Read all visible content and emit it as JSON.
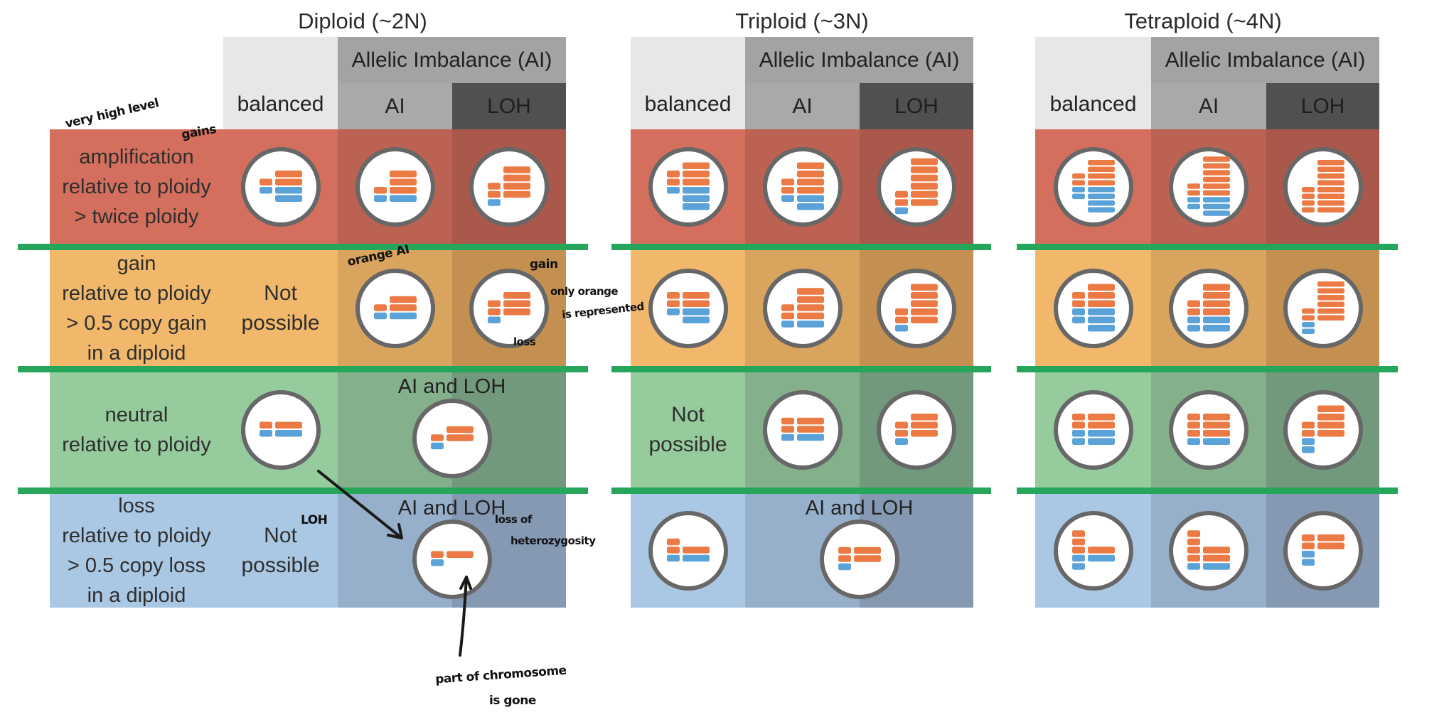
{
  "colors": {
    "orange": "#ec7a45",
    "blue": "#5aa2d8",
    "separator": "#26a65b",
    "header_balanced": "#e7e7e7",
    "header_ai_group": "#a3a3a3",
    "header_ai": "#a9a9a9",
    "header_loh": "#505050",
    "rows": {
      "amplification": [
        "#d46f5d",
        "#bc6252",
        "#aa584b"
      ],
      "gain": [
        "#f1b86c",
        "#d9a45e",
        "#c49052"
      ],
      "neutral": [
        "#96cb9d",
        "#84b08b",
        "#73997c"
      ],
      "loss": [
        "#aac7e4",
        "#96b0cb",
        "#8599b3"
      ]
    }
  },
  "row_labels": [
    {
      "key": "amplification",
      "lines": [
        "amplification",
        "relative to ploidy",
        "> twice ploidy"
      ]
    },
    {
      "key": "gain",
      "lines": [
        "gain",
        "relative to ploidy",
        "> 0.5 copy gain",
        "in a diploid"
      ]
    },
    {
      "key": "neutral",
      "lines": [
        "neutral",
        "relative to ploidy"
      ]
    },
    {
      "key": "loss",
      "lines": [
        "loss",
        "relative to ploidy",
        "> 0.5 copy loss",
        "in a diploid"
      ]
    }
  ],
  "ploidies": [
    {
      "title": "Diploid (~2N)",
      "ai_group": "Allelic Imbalance (AI)",
      "columns": [
        "balanced",
        "AI",
        "LOH"
      ],
      "rows": [
        [
          {
            "type": "circle",
            "chromosomes": [
              "O-q",
              "O-pq",
              "B-pq",
              "B-q"
            ]
          },
          {
            "type": "circle",
            "chromosomes": [
              "O-q",
              "O-q",
              "O-pq",
              "B-pq"
            ]
          },
          {
            "type": "circle",
            "chromosomes": [
              "O-q",
              "O-q",
              "O-pq",
              "O-pq",
              "B-p"
            ]
          }
        ],
        [
          {
            "type": "text",
            "lines": [
              "Not",
              "possible"
            ]
          },
          {
            "type": "circle",
            "chromosomes": [
              "O-q",
              "O-pq",
              "B-pq"
            ]
          },
          {
            "type": "circle",
            "chromosomes": [
              "O-q",
              "O-pq",
              "O-pq",
              "B-p"
            ]
          }
        ],
        [
          {
            "type": "circle",
            "chromosomes": [
              "O-pq",
              "B-pq"
            ]
          },
          {
            "type": "merged",
            "label": "AI and LOH",
            "chromosomes": [
              "O-q",
              "O-pq",
              "B-p"
            ]
          }
        ],
        [
          {
            "type": "text",
            "lines": [
              "Not",
              "possible"
            ]
          },
          {
            "type": "merged",
            "label": "AI and LOH",
            "chromosomes": [
              "O-pq",
              "B-p"
            ]
          }
        ]
      ]
    },
    {
      "title": "Triploid (~3N)",
      "ai_group": "Allelic Imbalance (AI)",
      "columns": [
        "balanced",
        "AI",
        "LOH"
      ],
      "rows": [
        [
          {
            "type": "circle",
            "chromosomes": [
              "O-q",
              "O-pq",
              "O-pq",
              "B-pq",
              "B-q",
              "B-q"
            ]
          },
          {
            "type": "circle",
            "chromosomes": [
              "O-q",
              "O-q",
              "O-pq",
              "O-pq",
              "B-pq",
              "B-q"
            ]
          },
          {
            "type": "circle",
            "chromosomes": [
              "O-q",
              "O-q",
              "O-q",
              "O-q",
              "O-pq",
              "O-pq",
              "B-p"
            ]
          }
        ],
        [
          {
            "type": "circle",
            "chromosomes": [
              "O-pq",
              "O-pq",
              "B-pq",
              "B-q"
            ]
          },
          {
            "type": "circle",
            "chromosomes": [
              "O-q",
              "O-q",
              "O-pq",
              "O-pq",
              "B-pq"
            ]
          },
          {
            "type": "circle",
            "chromosomes": [
              "O-q",
              "O-q",
              "O-q",
              "O-pq",
              "O-pq",
              "B-p"
            ]
          }
        ],
        [
          {
            "type": "text",
            "lines": [
              "Not",
              "possible"
            ]
          },
          {
            "type": "circle",
            "chromosomes": [
              "O-pq",
              "O-pq",
              "B-pq"
            ]
          },
          {
            "type": "circle",
            "chromosomes": [
              "O-q",
              "O-pq",
              "O-pq",
              "B-p"
            ]
          }
        ],
        [
          {
            "type": "circle",
            "chromosomes": [
              "O-p",
              "O-pq",
              "B-pq"
            ]
          },
          {
            "type": "merged",
            "label": "AI and LOH",
            "chromosomes": [
              "O-pq",
              "O-pq",
              "B-p"
            ]
          }
        ]
      ]
    },
    {
      "title": "Tetraploid (~4N)",
      "ai_group": "Allelic Imbalance (AI)",
      "columns": [
        "balanced",
        "AI",
        "LOH"
      ],
      "rows": [
        [
          {
            "type": "circle",
            "chromosomes": [
              "O-q",
              "O-q",
              "O-pq",
              "O-pq",
              "B-pq",
              "B-pq",
              "B-q",
              "B-q"
            ]
          },
          {
            "type": "circle",
            "chromosomes": [
              "O-q",
              "O-q",
              "O-q",
              "O-q",
              "O-pq",
              "O-pq",
              "B-pq",
              "B-pq",
              "B-q"
            ]
          },
          {
            "type": "circle",
            "chromosomes": [
              "O-q",
              "O-q",
              "O-q",
              "O-q",
              "O-pq",
              "O-pq",
              "O-pq",
              "O-pq"
            ]
          }
        ],
        [
          {
            "type": "circle",
            "chromosomes": [
              "O-q",
              "O-pq",
              "O-pq",
              "B-pq",
              "B-pq",
              "B-q"
            ]
          },
          {
            "type": "circle",
            "chromosomes": [
              "O-q",
              "O-q",
              "O-pq",
              "O-pq",
              "B-pq",
              "B-pq"
            ]
          },
          {
            "type": "circle",
            "chromosomes": [
              "O-q",
              "O-q",
              "O-q",
              "O-q",
              "O-pq",
              "O-pq",
              "B-p",
              "B-p"
            ]
          }
        ],
        [
          {
            "type": "circle",
            "chromosomes": [
              "O-pq",
              "O-pq",
              "B-pq",
              "B-pq"
            ]
          },
          {
            "type": "circle",
            "chromosomes": [
              "O-pq",
              "O-pq",
              "O-pq",
              "B-pq"
            ]
          },
          {
            "type": "circle",
            "chromosomes": [
              "O-q",
              "O-q",
              "O-pq",
              "O-pq",
              "B-p",
              "B-p"
            ]
          }
        ],
        [
          {
            "type": "circle",
            "chromosomes": [
              "O-p",
              "O-p",
              "O-pq",
              "B-pq",
              "B-p"
            ]
          },
          {
            "type": "circle",
            "chromosomes": [
              "O-p",
              "O-p",
              "O-pq",
              "O-pq",
              "B-pq"
            ]
          },
          {
            "type": "circle",
            "chromosomes": [
              "O-pq",
              "O-pq",
              "B-p",
              "B-p"
            ]
          }
        ]
      ]
    }
  ],
  "annotations": {
    "very_high_level": "very high level",
    "gains": "gains",
    "orange_ai": "orange AI",
    "gain": "gain",
    "only_orange": "only orange",
    "is_represented": "is represented",
    "loss": "loss",
    "loh": "LOH",
    "loss_of": "loss of",
    "heterozygosity": "heterozygosity",
    "part_of_chromosome": "part of chromosome",
    "is_gone": "is gone"
  }
}
